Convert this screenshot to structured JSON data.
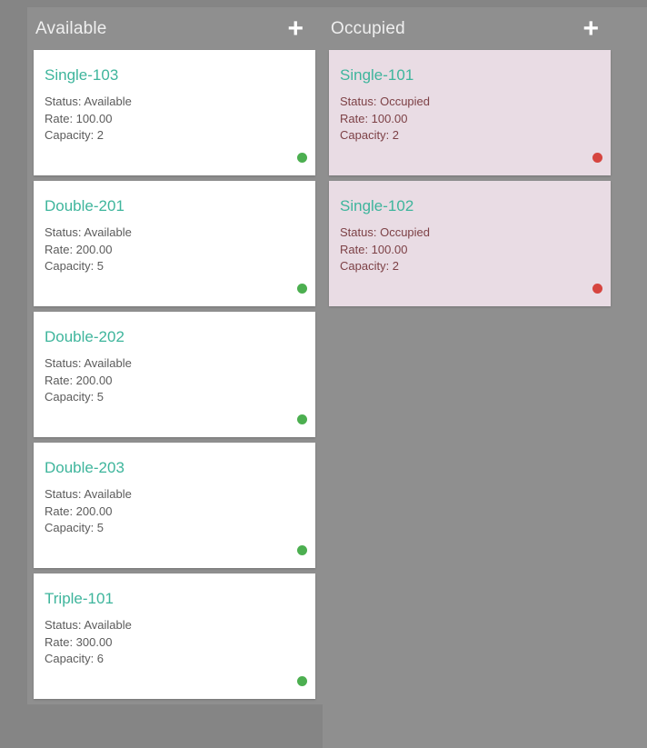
{
  "colors": {
    "page_bg": "#858585",
    "column_bg": "#8f8f8f",
    "available_card_bg": "#ffffff",
    "occupied_card_bg": "#e9dce4",
    "room_name_accent": "#3eb59c",
    "available_text": "#5b5b5b",
    "occupied_text": "#7d4146",
    "available_dot": "#4caf50",
    "occupied_dot": "#d6453f",
    "column_header_text": "#efefef"
  },
  "columns": [
    {
      "title": "Available",
      "add_button": "+",
      "cards": [
        {
          "name": "Single-103",
          "status_line": "Status: Available",
          "rate_line": "Rate: 100.00",
          "capacity_line": "Capacity: 2",
          "dot": "green"
        },
        {
          "name": "Double-201",
          "status_line": "Status: Available",
          "rate_line": "Rate: 200.00",
          "capacity_line": "Capacity: 5",
          "dot": "green"
        },
        {
          "name": "Double-202",
          "status_line": "Status: Available",
          "rate_line": "Rate: 200.00",
          "capacity_line": "Capacity: 5",
          "dot": "green"
        },
        {
          "name": "Double-203",
          "status_line": "Status: Available",
          "rate_line": "Rate: 200.00",
          "capacity_line": "Capacity: 5",
          "dot": "green"
        },
        {
          "name": "Triple-101",
          "status_line": "Status: Available",
          "rate_line": "Rate: 300.00",
          "capacity_line": "Capacity: 6",
          "dot": "green"
        }
      ]
    },
    {
      "title": "Occupied",
      "add_button": "+",
      "cards": [
        {
          "name": "Single-101",
          "status_line": "Status: Occupied",
          "rate_line": "Rate: 100.00",
          "capacity_line": "Capacity: 2",
          "dot": "red"
        },
        {
          "name": "Single-102",
          "status_line": "Status: Occupied",
          "rate_line": "Rate: 100.00",
          "capacity_line": "Capacity: 2",
          "dot": "red"
        }
      ]
    }
  ]
}
